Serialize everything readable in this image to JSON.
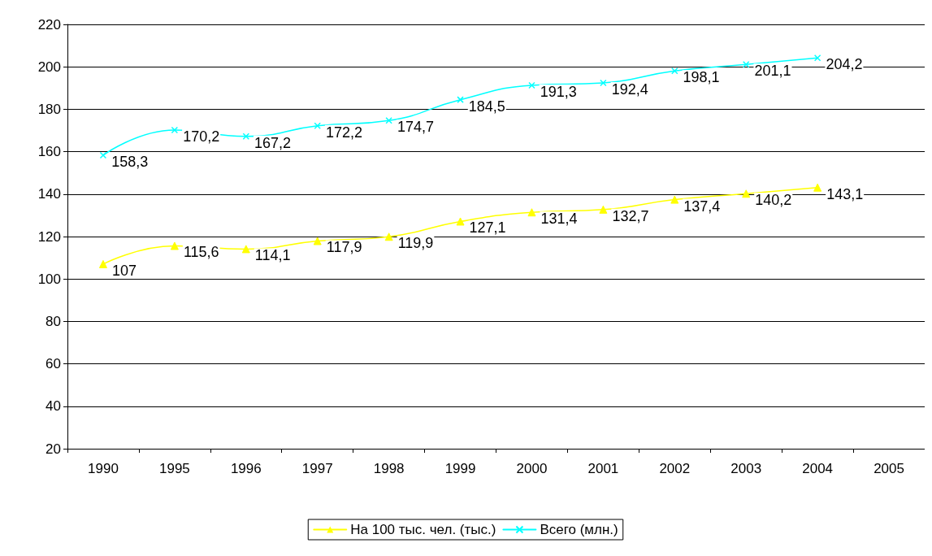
{
  "chart_data": {
    "type": "line",
    "categories": [
      "1990",
      "1995",
      "1996",
      "1997",
      "1998",
      "1999",
      "2000",
      "2001",
      "2002",
      "2003",
      "2004",
      "2005"
    ],
    "series": [
      {
        "name": "На 100 тыс. чел. (тыс.)",
        "color": "#ffff00",
        "marker": "triangle",
        "values": [
          107,
          115.6,
          114.1,
          117.9,
          119.9,
          127.1,
          131.4,
          132.7,
          137.4,
          140.2,
          143.1,
          null
        ],
        "value_labels": [
          "107",
          "115,6",
          "114,1",
          "117,9",
          "119,9",
          "127,1",
          "131,4",
          "132,7",
          "137,4",
          "140,2",
          "143,1",
          null
        ]
      },
      {
        "name": "Всего (млн.)",
        "color": "#00ffff",
        "marker": "cross",
        "values": [
          158.3,
          170.2,
          167.2,
          172.2,
          174.7,
          184.5,
          191.3,
          192.4,
          198.1,
          201.1,
          204.2,
          null
        ],
        "value_labels": [
          "158,3",
          "170,2",
          "167,2",
          "172,2",
          "174,7",
          "184,5",
          "191,3",
          "192,4",
          "198,1",
          "201,1",
          "204,2",
          null
        ]
      }
    ],
    "ylim": [
      20,
      220
    ],
    "yticks": [
      20,
      40,
      60,
      80,
      100,
      120,
      140,
      160,
      180,
      200,
      220
    ],
    "grid": "y",
    "legend": "bottom",
    "line_style": "solid"
  }
}
